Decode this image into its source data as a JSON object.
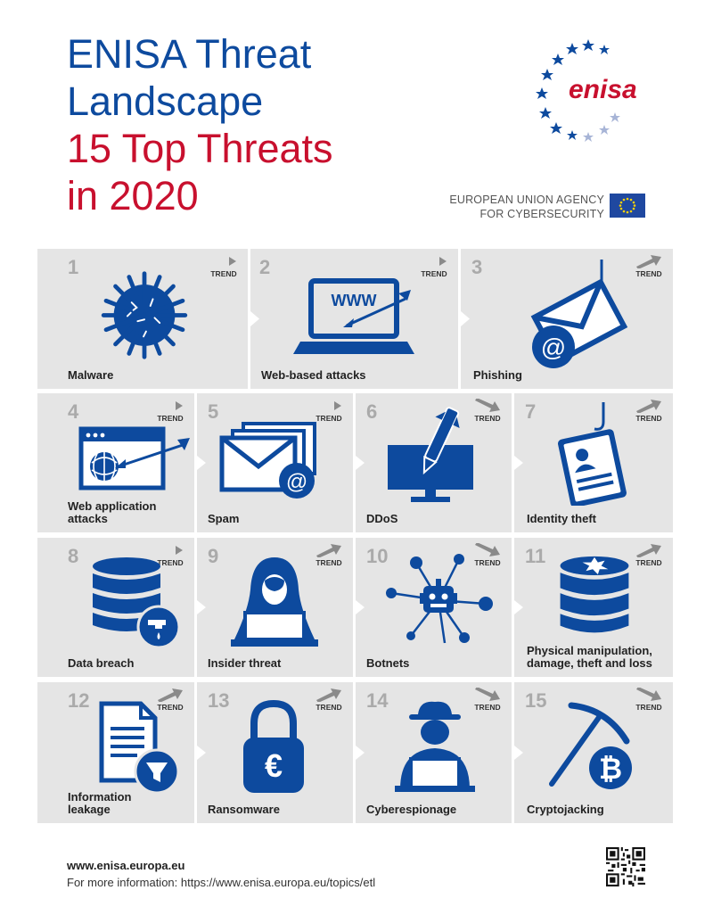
{
  "header": {
    "title_line1": "ENISA Threat",
    "title_line2": "Landscape",
    "title_line3": "15 Top Threats",
    "title_line4": "in 2020",
    "logo_text": "enisa",
    "agency_line1": "EUROPEAN UNION AGENCY",
    "agency_line2": "FOR CYBERSECURITY"
  },
  "colors": {
    "blue": "#0d4a9e",
    "red": "#c8102e",
    "tile": "#e5e5e5",
    "gray": "#aaaaaa"
  },
  "trend_label": "TREND",
  "threats": [
    {
      "num": "1",
      "label": "Malware",
      "icon": "virus-icon",
      "trend": "flat"
    },
    {
      "num": "2",
      "label": "Web-based attacks",
      "icon": "laptop-www-icon",
      "trend": "flat"
    },
    {
      "num": "3",
      "label": "Phishing",
      "icon": "phishing-hook-icon",
      "trend": "up"
    },
    {
      "num": "4",
      "label": "Web application\nattacks",
      "icon": "browser-arrow-icon",
      "trend": "flat"
    },
    {
      "num": "5",
      "label": "Spam",
      "icon": "spam-envelopes-icon",
      "trend": "flat"
    },
    {
      "num": "6",
      "label": "DDoS",
      "icon": "monitor-missile-icon",
      "trend": "down"
    },
    {
      "num": "7",
      "label": "Identity theft",
      "icon": "id-card-hook-icon",
      "trend": "up"
    },
    {
      "num": "8",
      "label": "Data breach",
      "icon": "database-leak-icon",
      "trend": "flat"
    },
    {
      "num": "9",
      "label": "Insider threat",
      "icon": "hooded-user-icon",
      "trend": "up"
    },
    {
      "num": "10",
      "label": "Botnets",
      "icon": "bot-network-icon",
      "trend": "down"
    },
    {
      "num": "11",
      "label": "Physical manipulation,\ndamage, theft and loss",
      "icon": "database-broken-icon",
      "trend": "up"
    },
    {
      "num": "12",
      "label": "Information\nleakage",
      "icon": "document-funnel-icon",
      "trend": "up"
    },
    {
      "num": "13",
      "label": "Ransomware",
      "icon": "padlock-euro-icon",
      "trend": "up"
    },
    {
      "num": "14",
      "label": "Cyberespionage",
      "icon": "spy-laptop-icon",
      "trend": "down"
    },
    {
      "num": "15",
      "label": "Cryptojacking",
      "icon": "pickaxe-bitcoin-icon",
      "trend": "down"
    }
  ],
  "footer": {
    "url": "www.enisa.europa.eu",
    "info": "For more information: https://www.enisa.europa.eu/topics/etl"
  }
}
